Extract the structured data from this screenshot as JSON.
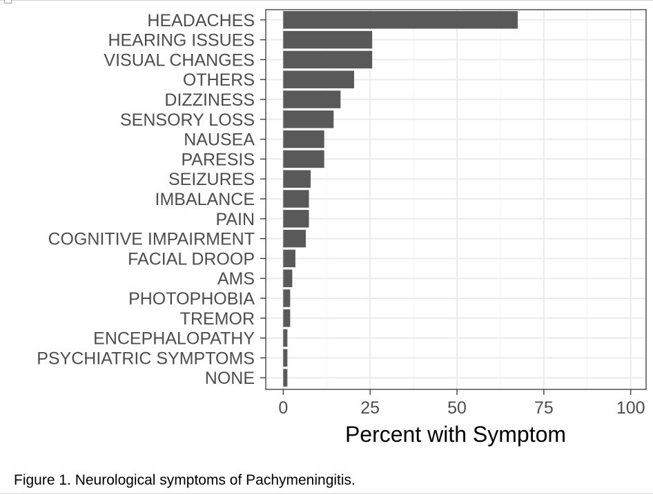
{
  "caption": "Figure 1. Neurological symptoms of Pachymeningitis.",
  "chart_data": {
    "type": "bar",
    "orientation": "horizontal",
    "xlabel": "Percent with Symptom",
    "ylabel": "",
    "xlim": [
      0,
      100
    ],
    "x_ticks": [
      0,
      25,
      50,
      75,
      100
    ],
    "grid": true,
    "bar_color": "#595959",
    "categories": [
      "HEADACHES",
      "HEARING ISSUES",
      "VISUAL CHANGES",
      "OTHERS",
      "DIZZINESS",
      "SENSORY LOSS",
      "NAUSEA",
      "PARESIS",
      "SEIZURES",
      "IMBALANCE",
      "PAIN",
      "COGNITIVE IMPAIRMENT",
      "FACIAL DROOP",
      "AMS",
      "PHOTOPHOBIA",
      "TREMOR",
      "ENCEPHALOPATHY",
      "PSYCHIATRIC SYMPTOMS",
      "NONE"
    ],
    "values": [
      67.5,
      25.6,
      25.6,
      20.4,
      16.5,
      14.5,
      11.8,
      11.8,
      7.9,
      7.4,
      7.4,
      6.5,
      3.5,
      2.6,
      2.0,
      2.0,
      1.2,
      1.2,
      1.2
    ]
  }
}
